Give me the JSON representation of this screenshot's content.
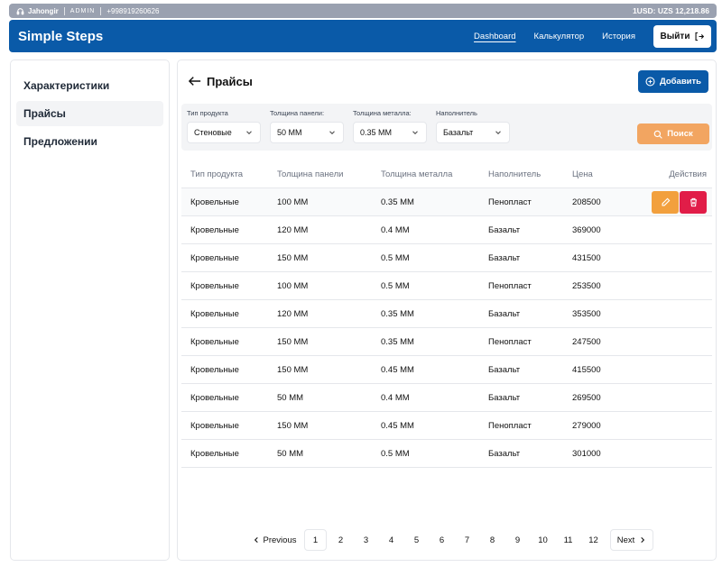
{
  "topbar": {
    "user": "Jahongir",
    "role": "ADMIN",
    "phone": "+998919260626",
    "rate": "1USD: UZS 12,218.86"
  },
  "navbar": {
    "brand": "Simple Steps",
    "links": [
      "Dashboard",
      "Калькулятор",
      "История"
    ],
    "logout": "Выйти"
  },
  "sidebar": {
    "items": [
      "Характеристики",
      "Прайсы",
      "Предложении"
    ]
  },
  "page": {
    "title": "Прайсы",
    "add_label": "Добавить"
  },
  "filters": {
    "product_type": {
      "label": "Тип продукта",
      "value": "Стеновые"
    },
    "panel_thickness": {
      "label": "Толщина панели:",
      "value": "50 MM"
    },
    "metal_thickness": {
      "label": "Толщина металла:",
      "value": "0.35 MM"
    },
    "filler": {
      "label": "Наполнитель",
      "value": "Базальт"
    },
    "search_label": "Поиск"
  },
  "table": {
    "headers": [
      "Тип продукта",
      "Толщина панели",
      "Толщина металла",
      "Наполнитель",
      "Цена",
      "Действия"
    ],
    "rows": [
      [
        "Кровельные",
        "100 MM",
        "0.35 MM",
        "Пенопласт",
        "208500"
      ],
      [
        "Кровельные",
        "120 MM",
        "0.4 MM",
        "Базальт",
        "369000"
      ],
      [
        "Кровельные",
        "150 MM",
        "0.5 MM",
        "Базальт",
        "431500"
      ],
      [
        "Кровельные",
        "100 MM",
        "0.5 MM",
        "Пенопласт",
        "253500"
      ],
      [
        "Кровельные",
        "120 MM",
        "0.35 MM",
        "Базальт",
        "353500"
      ],
      [
        "Кровельные",
        "150 MM",
        "0.35 MM",
        "Пенопласт",
        "247500"
      ],
      [
        "Кровельные",
        "150 MM",
        "0.45 MM",
        "Базальт",
        "415500"
      ],
      [
        "Кровельные",
        "50 MM",
        "0.4 MM",
        "Базальт",
        "269500"
      ],
      [
        "Кровельные",
        "150 MM",
        "0.45 MM",
        "Пенопласт",
        "279000"
      ],
      [
        "Кровельные",
        "50 MM",
        "0.5 MM",
        "Базальт",
        "301000"
      ]
    ]
  },
  "pagination": {
    "prev": "Previous",
    "pages": [
      "1",
      "2",
      "3",
      "4",
      "5",
      "6",
      "7",
      "8",
      "9",
      "10",
      "11",
      "12"
    ],
    "current": "1",
    "next": "Next"
  },
  "colors": {
    "primary": "#0a5aa8",
    "search": "#f2a561",
    "edit": "#f2a03d",
    "delete": "#e11d48"
  }
}
